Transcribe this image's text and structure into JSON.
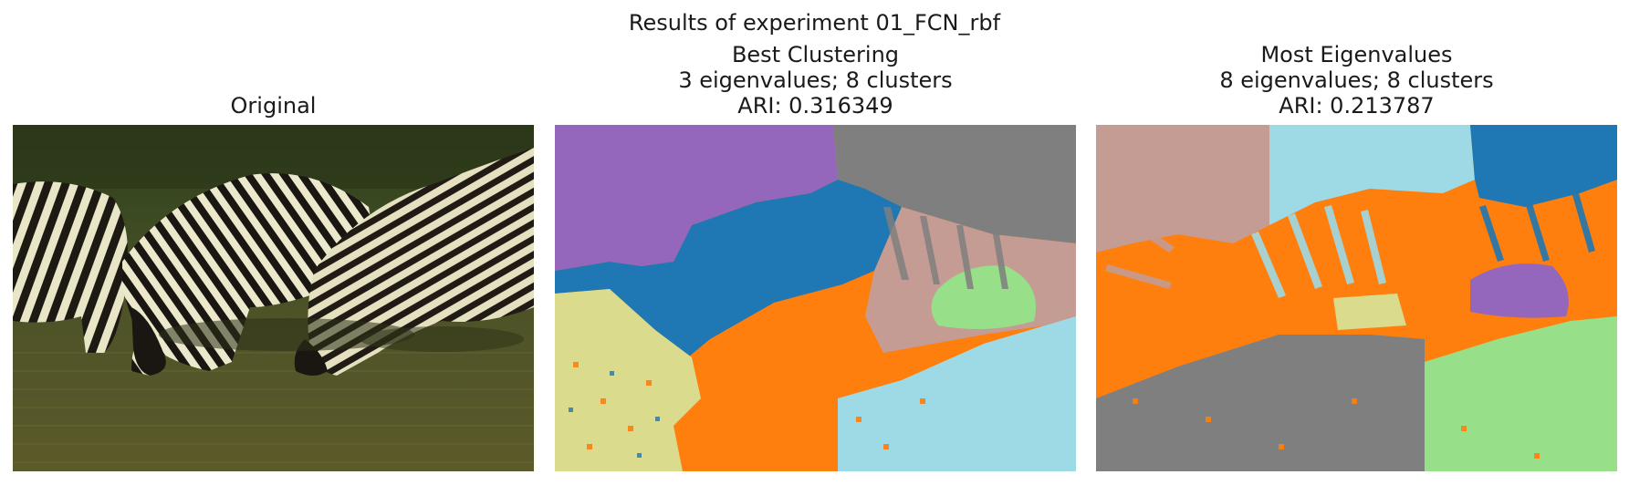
{
  "figure": {
    "title": "Results of experiment 01_FCN_rbf"
  },
  "panels": [
    {
      "title_lines": [
        "Original"
      ]
    },
    {
      "title_lines": [
        "Best Clustering",
        "3 eigenvalues; 8 clusters",
        "ARI: 0.316349"
      ]
    },
    {
      "title_lines": [
        "Most Eigenvalues",
        "8 eigenvalues; 8 clusters",
        "ARI: 0.213787"
      ]
    }
  ],
  "palette": {
    "blue": "#1f77b4",
    "orange": "#ff7f0e",
    "purple": "#9467bd",
    "gray": "#7f7f7f",
    "rose": "#c49c94",
    "light_green": "#98df8a",
    "light_cyan": "#9edae5",
    "khaki": "#dbdb8d"
  }
}
